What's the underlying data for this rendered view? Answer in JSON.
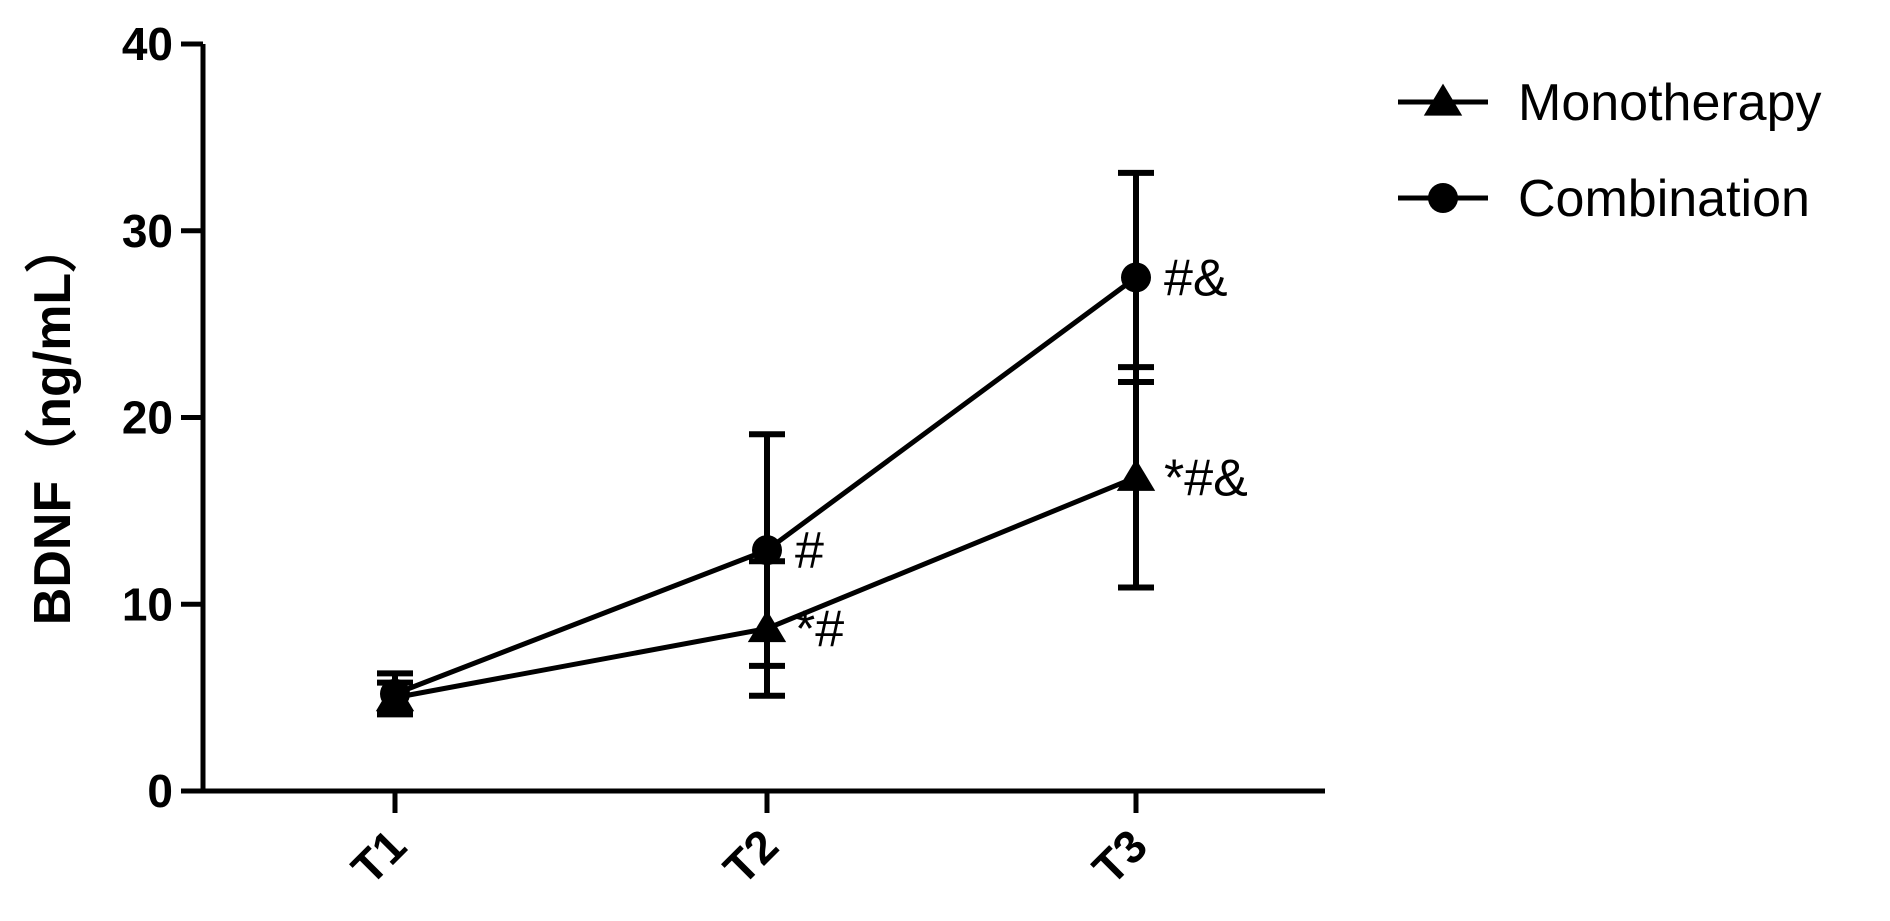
{
  "chart_data": {
    "type": "line",
    "categories": [
      "T1",
      "T2",
      "T3"
    ],
    "ylabel": "BDNF（ng/mL）",
    "ylim": [
      0,
      40
    ],
    "yticks": [
      0,
      10,
      20,
      30,
      40
    ],
    "legend_position": "top-right",
    "grid": false,
    "series": [
      {
        "name": "Monotherapy",
        "marker": "triangle",
        "values": [
          5.0,
          8.7,
          16.8
        ],
        "error": [
          0.8,
          3.6,
          5.9
        ],
        "annotations": [
          "",
          "*#",
          "*#&"
        ]
      },
      {
        "name": "Combination",
        "marker": "circle",
        "values": [
          5.2,
          12.9,
          27.5
        ],
        "error": [
          1.1,
          6.2,
          5.6
        ],
        "annotations": [
          "",
          "#",
          "#&"
        ]
      }
    ],
    "colors": {
      "line": "#000000"
    }
  }
}
